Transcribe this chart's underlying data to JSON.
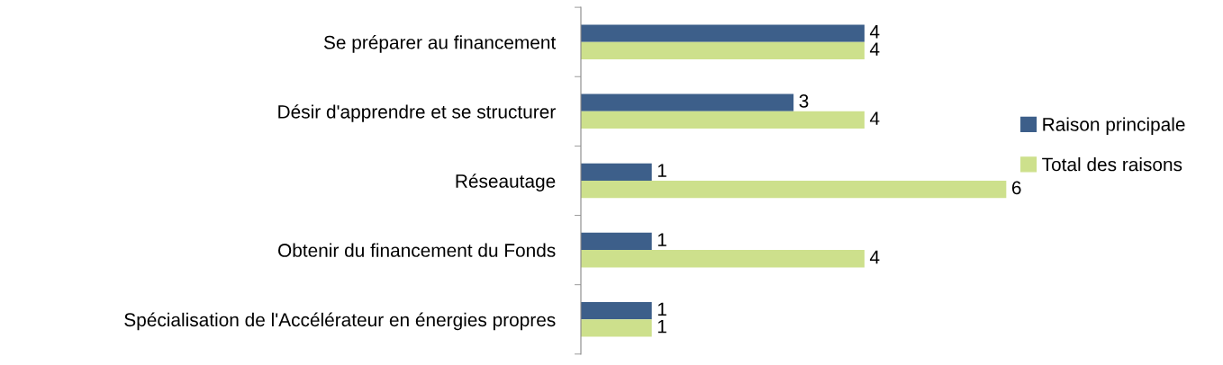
{
  "chart_data": {
    "type": "bar",
    "orientation": "horizontal",
    "categories": [
      "Se préparer au financement",
      "Désir d'apprendre et se structurer",
      "Réseautage",
      "Obtenir du financement du Fonds",
      "Spécialisation de l'Accélérateur en énergies propres"
    ],
    "series": [
      {
        "name": "Raison principale",
        "color": "#3d5f8a",
        "values": [
          4,
          3,
          1,
          1,
          1
        ]
      },
      {
        "name": "Total des raisons",
        "color": "#cde08c",
        "values": [
          4,
          4,
          6,
          4,
          1
        ]
      }
    ],
    "data_labels": true,
    "legend": "right",
    "grid": false,
    "tick_labels": "y"
  }
}
